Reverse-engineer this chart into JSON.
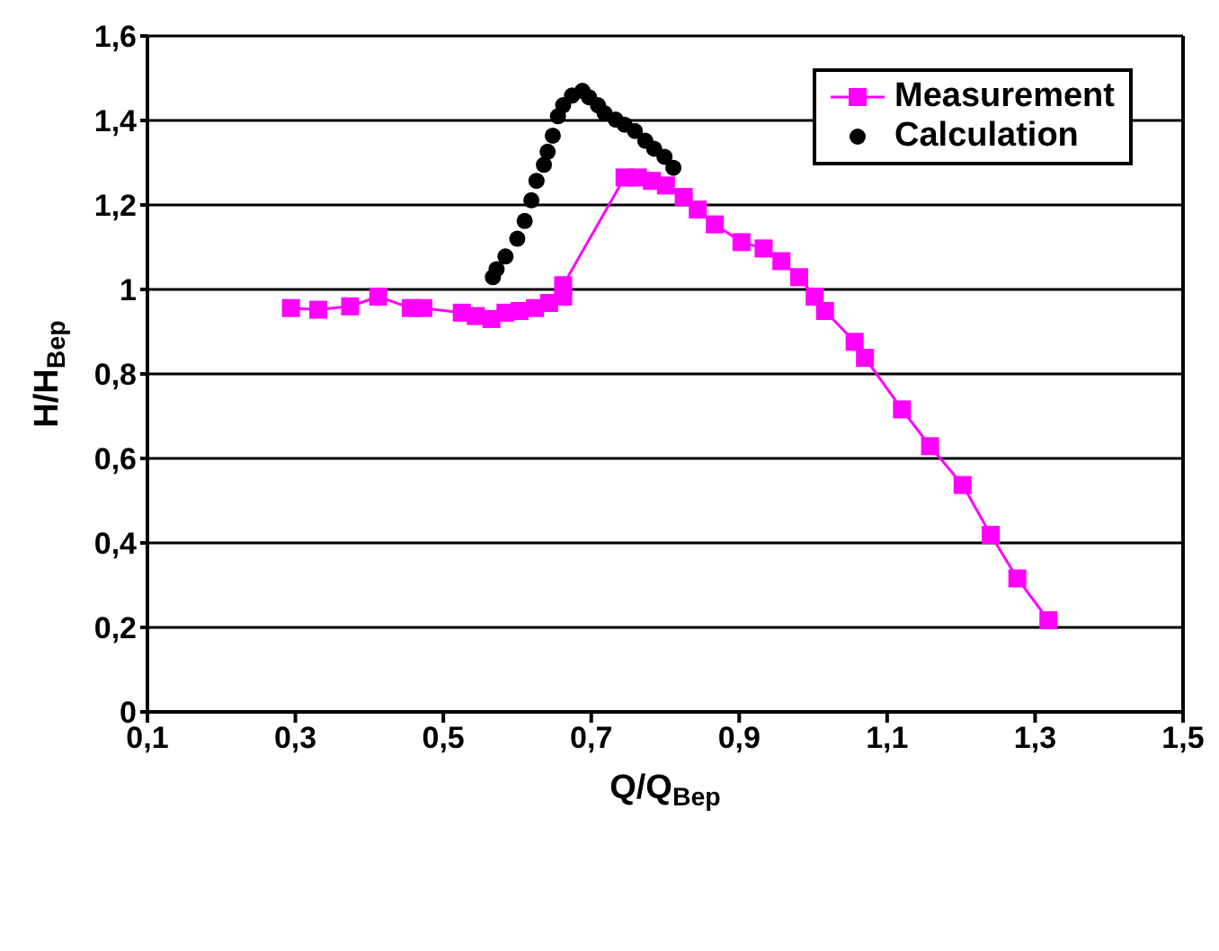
{
  "chart_data": {
    "type": "line",
    "xlabel": "Q/Q$_{Bep}$",
    "ylabel": "H/H$_{Bep}$",
    "xlim": [
      0.1,
      1.5
    ],
    "xticks": [
      {
        "value": 0.1,
        "label": "0,1"
      },
      {
        "value": 0.3,
        "label": "0,3"
      },
      {
        "value": 0.5,
        "label": "0,5"
      },
      {
        "value": 0.7,
        "label": "0,7"
      },
      {
        "value": 0.9,
        "label": "0,9"
      },
      {
        "value": 1.1,
        "label": "1,1"
      },
      {
        "value": 1.3,
        "label": "1,3"
      },
      {
        "value": 1.5,
        "label": "1,5"
      }
    ],
    "ylim": [
      0,
      1.6
    ],
    "yticks": [
      0,
      {
        "value": 0.2,
        "label": "0,2"
      },
      {
        "value": 0.4,
        "label": "0,4"
      },
      {
        "value": 0.6,
        "label": "0,6"
      },
      {
        "value": 0.8,
        "label": "0,8"
      },
      1,
      {
        "value": 1.2,
        "label": "1,2"
      },
      {
        "value": 1.4,
        "label": "1,4"
      },
      {
        "value": 1.6,
        "label": "1,6"
      }
    ],
    "grid": "y",
    "legend": "top right",
    "series": [
      {
        "name": "Measurement",
        "marker": "square",
        "color": "#ff00ff",
        "x": [
          0.294,
          0.331,
          0.374,
          0.412,
          0.456,
          0.473,
          0.525,
          0.544,
          0.565,
          0.584,
          0.603,
          0.624,
          0.643,
          0.662,
          0.662,
          0.745,
          0.763,
          0.782,
          0.801,
          0.825,
          0.844,
          0.867,
          0.903,
          0.933,
          0.957,
          0.981,
          1.002,
          1.016,
          1.056,
          1.07,
          1.12,
          1.158,
          1.202,
          1.24,
          1.276,
          1.318
        ],
        "values": [
          0.956,
          0.952,
          0.96,
          0.983,
          0.956,
          0.956,
          0.945,
          0.937,
          0.93,
          0.945,
          0.949,
          0.956,
          0.968,
          0.983,
          1.01,
          1.265,
          1.265,
          1.257,
          1.246,
          1.219,
          1.189,
          1.154,
          1.112,
          1.097,
          1.067,
          1.029,
          0.983,
          0.949,
          0.876,
          0.838,
          0.716,
          0.629,
          0.537,
          0.419,
          0.316,
          0.217
        ]
      },
      {
        "name": "Calculation",
        "type": "scatter",
        "marker": "circle",
        "color": "#000000",
        "x": [
          0.567,
          0.572,
          0.584,
          0.6,
          0.61,
          0.619,
          0.626,
          0.636,
          0.641,
          0.648,
          0.655,
          0.662,
          0.674,
          0.688,
          0.697,
          0.709,
          0.718,
          0.733,
          0.745,
          0.759,
          0.773,
          0.785,
          0.799,
          0.811
        ],
        "values": [
          1.029,
          1.048,
          1.078,
          1.12,
          1.162,
          1.211,
          1.257,
          1.295,
          1.326,
          1.364,
          1.41,
          1.436,
          1.459,
          1.47,
          1.455,
          1.436,
          1.417,
          1.402,
          1.39,
          1.375,
          1.352,
          1.333,
          1.314,
          1.288
        ]
      }
    ]
  }
}
